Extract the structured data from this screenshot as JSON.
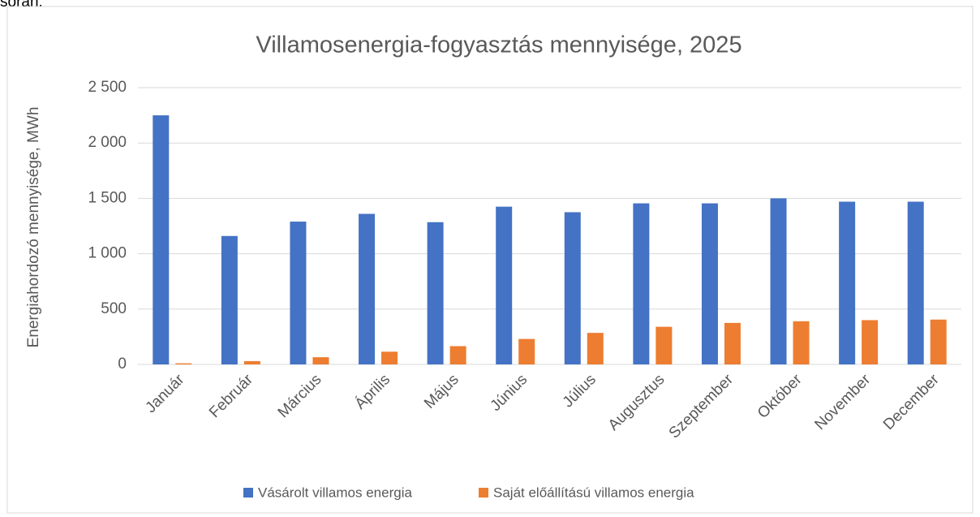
{
  "page_text": "során.",
  "chart_data": {
    "type": "bar",
    "title": "Villamosenergia-fogyasztás mennyisége, 2025",
    "y_label": "Energiahordozó mennyisége, MWh",
    "categories": [
      "Január",
      "Február",
      "Március",
      "Április",
      "Május",
      "Június",
      "Július",
      "Augusztus",
      "Szeptember",
      "Október",
      "November",
      "December"
    ],
    "series": [
      {
        "name": "Vásárolt villamos energia",
        "color": "#4472c4",
        "values": [
          2250,
          1160,
          1290,
          1360,
          1285,
          1425,
          1375,
          1455,
          1455,
          1500,
          1470,
          1470
        ]
      },
      {
        "name": "Saját előállítású villamos energia",
        "color": "#ed7d31",
        "values": [
          10,
          30,
          65,
          115,
          165,
          230,
          285,
          340,
          375,
          390,
          400,
          405
        ]
      }
    ],
    "ylim": [
      0,
      2500
    ],
    "yticks": [
      0,
      500,
      {
        "value": 1000,
        "label": "1 000"
      },
      {
        "value": 1500,
        "label": "1 500"
      },
      {
        "value": 2000,
        "label": "2 000"
      },
      {
        "value": 2500,
        "label": "2 500"
      }
    ],
    "grid": true,
    "legend": "bottom"
  }
}
